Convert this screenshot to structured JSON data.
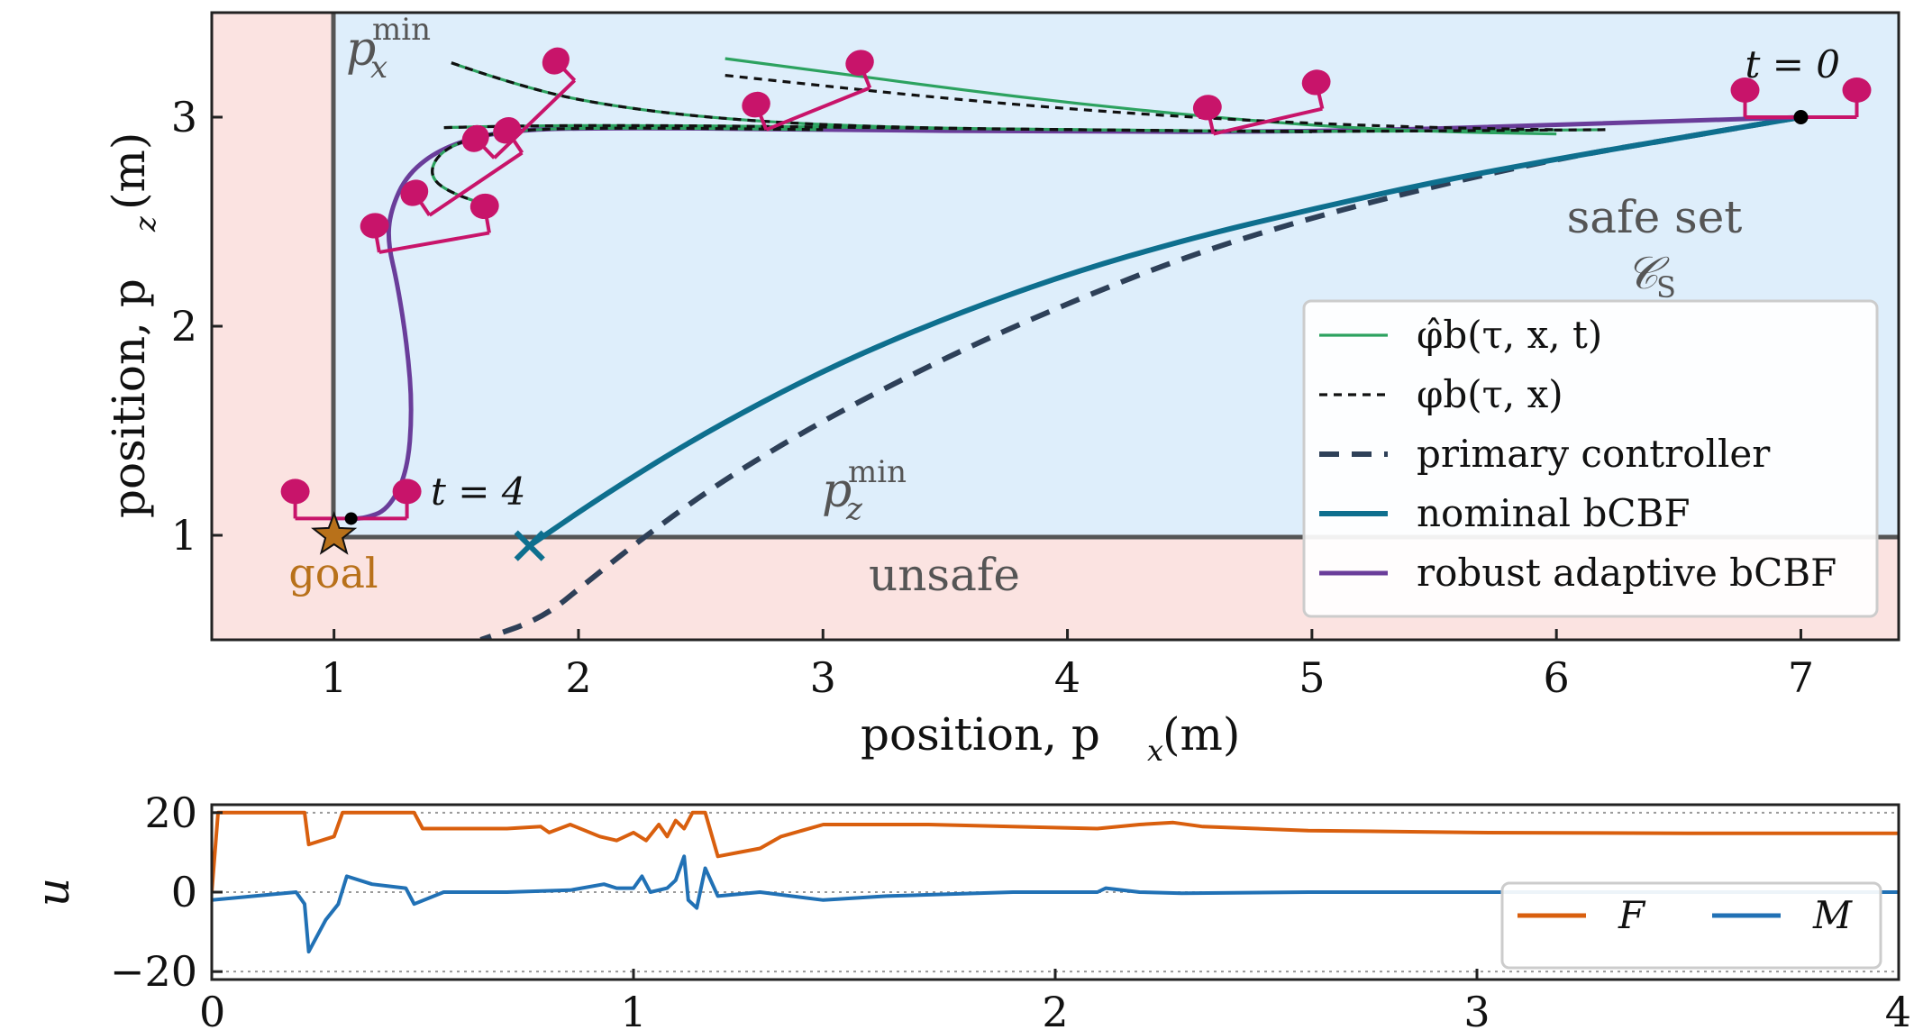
{
  "chart_data": [
    {
      "type": "line",
      "xlabel": "position, p",
      "xlabel_sub": "x",
      "xlabel_unit": "(m)",
      "ylabel": "position, p",
      "ylabel_sub": "z",
      "ylabel_unit": "(m)",
      "xlim": [
        0.5,
        7.4
      ],
      "ylim": [
        0.5,
        3.5
      ],
      "x_ticks": [
        1,
        2,
        3,
        4,
        5,
        6,
        7
      ],
      "y_ticks": [
        1,
        2,
        3
      ],
      "grid": false,
      "legend_position": "right",
      "regions": {
        "safe_label": "safe set",
        "safe_symbol": "𝒞",
        "safe_symbol_sub": "S",
        "unsafe_label": "unsafe",
        "safe_color": "#deeefb",
        "unsafe_color": "#fbe3e1"
      },
      "boundaries": {
        "px_min_label": "p",
        "px_min_sub": "x",
        "px_min_sup": "min",
        "px_min_value": 1,
        "pz_min_label": "p",
        "pz_min_sub": "z",
        "pz_min_sup": "min",
        "pz_min_value": 1
      },
      "annotations": {
        "t_start": "t = 0",
        "t_end": "t = 4",
        "goal": "goal",
        "goal_point": [
          1.0,
          1.0
        ],
        "crash_point": [
          1.8,
          0.95
        ],
        "start_point": [
          7.0,
          3.0
        ],
        "end_point": [
          1.07,
          1.08
        ]
      },
      "series": [
        {
          "name": "φ̂b(τ, x, t)",
          "color": "#2ca25f",
          "style": "solid",
          "segments": [
            [
              [
                2.6,
                3.28
              ],
              [
                3.0,
                3.22
              ],
              [
                3.5,
                3.14
              ],
              [
                4.0,
                3.07
              ],
              [
                4.5,
                3.01
              ],
              [
                5.0,
                2.96
              ],
              [
                5.5,
                2.93
              ],
              [
                6.0,
                2.92
              ]
            ],
            [
              [
                1.48,
                3.26
              ],
              [
                1.8,
                3.13
              ],
              [
                2.2,
                3.04
              ],
              [
                2.7,
                2.98
              ],
              [
                3.3,
                2.95
              ],
              [
                4.0,
                2.94
              ],
              [
                5.0,
                2.93
              ]
            ],
            [
              [
                1.45,
                2.95
              ],
              [
                1.8,
                2.96
              ],
              [
                2.4,
                2.96
              ],
              [
                3.2,
                2.95
              ],
              [
                4.0,
                2.94
              ],
              [
                5.0,
                2.93
              ],
              [
                6.2,
                2.94
              ]
            ],
            [
              [
                1.66,
                2.57
              ],
              [
                1.5,
                2.62
              ],
              [
                1.38,
                2.72
              ],
              [
                1.45,
                2.86
              ],
              [
                1.7,
                2.94
              ],
              [
                2.2,
                2.95
              ],
              [
                3.0,
                2.94
              ]
            ]
          ]
        },
        {
          "name": "φb(τ, x)",
          "color": "#111111",
          "style": "dotted",
          "segments": [
            [
              [
                2.6,
                3.2
              ],
              [
                3.0,
                3.15
              ],
              [
                3.5,
                3.09
              ],
              [
                4.0,
                3.04
              ],
              [
                4.5,
                3.0
              ],
              [
                5.0,
                2.97
              ],
              [
                5.5,
                2.95
              ],
              [
                6.0,
                2.94
              ]
            ],
            [
              [
                1.48,
                3.26
              ],
              [
                1.8,
                3.13
              ],
              [
                2.2,
                3.04
              ],
              [
                2.7,
                2.98
              ],
              [
                3.3,
                2.95
              ],
              [
                4.0,
                2.94
              ],
              [
                5.0,
                2.93
              ]
            ],
            [
              [
                1.45,
                2.95
              ],
              [
                1.8,
                2.96
              ],
              [
                2.4,
                2.96
              ],
              [
                3.2,
                2.95
              ],
              [
                4.0,
                2.94
              ],
              [
                5.0,
                2.93
              ],
              [
                6.2,
                2.94
              ]
            ],
            [
              [
                1.66,
                2.57
              ],
              [
                1.5,
                2.62
              ],
              [
                1.38,
                2.72
              ],
              [
                1.45,
                2.86
              ],
              [
                1.7,
                2.94
              ],
              [
                2.2,
                2.95
              ],
              [
                3.0,
                2.94
              ]
            ]
          ]
        },
        {
          "name": "primary controller",
          "color": "#2e4058",
          "style": "dashed",
          "points": [
            [
              7.0,
              3.0
            ],
            [
              6.5,
              2.9
            ],
            [
              6.0,
              2.8
            ],
            [
              5.5,
              2.67
            ],
            [
              5.0,
              2.52
            ],
            [
              4.5,
              2.34
            ],
            [
              4.0,
              2.11
            ],
            [
              3.5,
              1.85
            ],
            [
              3.0,
              1.55
            ],
            [
              2.6,
              1.27
            ],
            [
              2.3,
              1.02
            ],
            [
              2.05,
              0.79
            ],
            [
              1.85,
              0.6
            ],
            [
              1.6,
              0.5
            ]
          ]
        },
        {
          "name": "nominal bCBF",
          "color": "#0e6f8e",
          "style": "solid",
          "points": [
            [
              7.0,
              3.0
            ],
            [
              6.5,
              2.9
            ],
            [
              6.0,
              2.8
            ],
            [
              5.5,
              2.69
            ],
            [
              5.0,
              2.56
            ],
            [
              4.5,
              2.42
            ],
            [
              4.0,
              2.25
            ],
            [
              3.5,
              2.04
            ],
            [
              3.0,
              1.79
            ],
            [
              2.5,
              1.48
            ],
            [
              2.1,
              1.19
            ],
            [
              1.8,
              0.95
            ]
          ]
        },
        {
          "name": "robust adaptive bCBF",
          "color": "#6a3d9a",
          "style": "solid",
          "points": [
            [
              7.0,
              3.0
            ],
            [
              6.0,
              2.96
            ],
            [
              5.0,
              2.93
            ],
            [
              4.0,
              2.93
            ],
            [
              3.0,
              2.94
            ],
            [
              2.2,
              2.95
            ],
            [
              1.7,
              2.94
            ],
            [
              1.45,
              2.86
            ],
            [
              1.3,
              2.73
            ],
            [
              1.23,
              2.55
            ],
            [
              1.22,
              2.4
            ],
            [
              1.26,
              2.2
            ],
            [
              1.3,
              1.9
            ],
            [
              1.32,
              1.6
            ],
            [
              1.3,
              1.3
            ],
            [
              1.22,
              1.12
            ],
            [
              1.12,
              1.08
            ],
            [
              1.07,
              1.08
            ]
          ]
        }
      ],
      "drone_snapshots": [
        {
          "x": 7.0,
          "z": 3.0,
          "angle": 0
        },
        {
          "x": 4.82,
          "z": 2.98,
          "angle": 13
        },
        {
          "x": 2.98,
          "z": 3.04,
          "angle": 22
        },
        {
          "x": 1.82,
          "z": 2.99,
          "angle": 44
        },
        {
          "x": 1.58,
          "z": 2.68,
          "angle": 34
        },
        {
          "x": 1.41,
          "z": 2.4,
          "angle": 10
        },
        {
          "x": 1.07,
          "z": 1.08,
          "angle": 0
        }
      ]
    },
    {
      "type": "line",
      "xlabel": "",
      "ylabel": "u",
      "xlim": [
        0,
        4
      ],
      "ylim": [
        -22,
        22
      ],
      "x_ticks": [
        0,
        1,
        2,
        3,
        4
      ],
      "y_ticks": [
        20,
        0,
        -20
      ],
      "y_tick_labels": [
        "20",
        "0",
        "−20"
      ],
      "reference_lines": [
        20,
        0,
        -20
      ],
      "legend_position": "lower right",
      "series": [
        {
          "name": "F",
          "color": "#d95f0e",
          "points": [
            [
              0,
              0
            ],
            [
              0.015,
              20
            ],
            [
              0.22,
              20
            ],
            [
              0.23,
              12
            ],
            [
              0.29,
              14
            ],
            [
              0.31,
              20
            ],
            [
              0.48,
              20
            ],
            [
              0.5,
              16
            ],
            [
              0.6,
              16
            ],
            [
              0.7,
              16
            ],
            [
              0.78,
              16.5
            ],
            [
              0.8,
              15
            ],
            [
              0.85,
              17
            ],
            [
              0.92,
              14
            ],
            [
              0.96,
              13
            ],
            [
              1.0,
              15
            ],
            [
              1.03,
              13
            ],
            [
              1.06,
              17
            ],
            [
              1.08,
              14
            ],
            [
              1.1,
              18
            ],
            [
              1.12,
              16
            ],
            [
              1.14,
              20
            ],
            [
              1.17,
              20
            ],
            [
              1.2,
              9
            ],
            [
              1.25,
              10
            ],
            [
              1.3,
              11
            ],
            [
              1.35,
              14
            ],
            [
              1.45,
              17
            ],
            [
              1.7,
              17
            ],
            [
              2.1,
              16
            ],
            [
              2.2,
              17
            ],
            [
              2.28,
              17.5
            ],
            [
              2.35,
              16.5
            ],
            [
              2.6,
              15.5
            ],
            [
              3.0,
              15
            ],
            [
              3.5,
              14.8
            ],
            [
              4.0,
              14.8
            ]
          ]
        },
        {
          "name": "M",
          "color": "#2171b5",
          "points": [
            [
              0,
              -2
            ],
            [
              0.1,
              -1
            ],
            [
              0.2,
              0
            ],
            [
              0.22,
              -3
            ],
            [
              0.23,
              -15
            ],
            [
              0.27,
              -7
            ],
            [
              0.3,
              -3
            ],
            [
              0.32,
              4
            ],
            [
              0.38,
              2
            ],
            [
              0.46,
              1
            ],
            [
              0.48,
              -3
            ],
            [
              0.55,
              0
            ],
            [
              0.7,
              0
            ],
            [
              0.85,
              0.5
            ],
            [
              0.93,
              2
            ],
            [
              0.96,
              1
            ],
            [
              1.0,
              1
            ],
            [
              1.02,
              4
            ],
            [
              1.04,
              0
            ],
            [
              1.08,
              1
            ],
            [
              1.1,
              3
            ],
            [
              1.12,
              9
            ],
            [
              1.13,
              -2
            ],
            [
              1.15,
              -4
            ],
            [
              1.17,
              6
            ],
            [
              1.2,
              -1
            ],
            [
              1.3,
              0
            ],
            [
              1.45,
              -2
            ],
            [
              1.6,
              -1
            ],
            [
              1.9,
              0
            ],
            [
              2.1,
              0
            ],
            [
              2.12,
              1
            ],
            [
              2.2,
              0
            ],
            [
              2.3,
              -0.3
            ],
            [
              2.6,
              0
            ],
            [
              3.0,
              0
            ],
            [
              4.0,
              0
            ]
          ]
        }
      ]
    }
  ]
}
